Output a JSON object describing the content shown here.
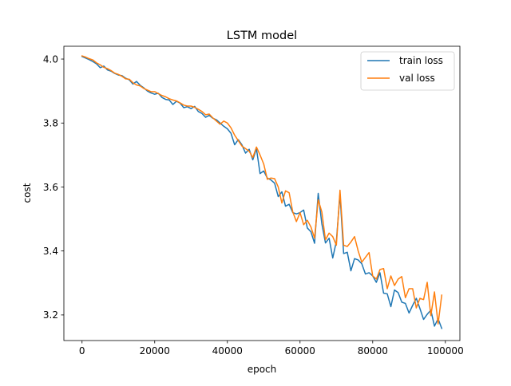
{
  "chart_data": {
    "type": "line",
    "title": "LSTM model",
    "xlabel": "epoch",
    "ylabel": "cost",
    "xlim": [
      -5000,
      104000
    ],
    "ylim": [
      3.12,
      4.04
    ],
    "x_ticks": [
      0,
      20000,
      40000,
      60000,
      80000,
      100000
    ],
    "x_tick_labels": [
      "0",
      "20000",
      "40000",
      "60000",
      "80000",
      "100000"
    ],
    "y_ticks": [
      3.2,
      3.4,
      3.6,
      3.8,
      4.0
    ],
    "y_tick_labels": [
      "3.2",
      "3.4",
      "3.6",
      "3.8",
      "4.0"
    ],
    "grid": false,
    "legend_position": "upper right",
    "x": [
      0,
      1000,
      2000,
      3000,
      4000,
      5000,
      6000,
      7000,
      8000,
      9000,
      10000,
      11000,
      12000,
      13000,
      14000,
      15000,
      16000,
      17000,
      18000,
      19000,
      20000,
      21000,
      22000,
      23000,
      24000,
      25000,
      26000,
      27000,
      28000,
      29000,
      30000,
      31000,
      32000,
      33000,
      34000,
      35000,
      36000,
      37000,
      38000,
      39000,
      40000,
      41000,
      42000,
      43000,
      44000,
      45000,
      46000,
      47000,
      48000,
      49000,
      50000,
      51000,
      52000,
      53000,
      54000,
      55000,
      56000,
      57000,
      58000,
      59000,
      60000,
      61000,
      62000,
      63000,
      64000,
      65000,
      66000,
      67000,
      68000,
      69000,
      70000,
      71000,
      72000,
      73000,
      74000,
      75000,
      76000,
      77000,
      78000,
      79000,
      80000,
      81000,
      82000,
      83000,
      84000,
      85000,
      86000,
      87000,
      88000,
      89000,
      90000,
      91000,
      92000,
      93000,
      94000,
      95000,
      96000,
      97000,
      98000,
      99000
    ],
    "series": [
      {
        "name": "train loss",
        "color": "#1f77b4",
        "values": [
          4.008,
          4.003,
          3.998,
          3.992,
          3.985,
          3.973,
          3.978,
          3.966,
          3.962,
          3.955,
          3.95,
          3.948,
          3.94,
          3.935,
          3.922,
          3.93,
          3.918,
          3.91,
          3.9,
          3.894,
          3.89,
          3.893,
          3.88,
          3.874,
          3.872,
          3.858,
          3.868,
          3.862,
          3.848,
          3.851,
          3.845,
          3.852,
          3.836,
          3.83,
          3.818,
          3.824,
          3.815,
          3.81,
          3.8,
          3.79,
          3.782,
          3.768,
          3.732,
          3.748,
          3.732,
          3.706,
          3.718,
          3.685,
          3.72,
          3.642,
          3.65,
          3.628,
          3.622,
          3.612,
          3.57,
          3.585,
          3.54,
          3.546,
          3.52,
          3.516,
          3.52,
          3.528,
          3.472,
          3.46,
          3.424,
          3.58,
          3.485,
          3.425,
          3.44,
          3.378,
          3.43,
          3.578,
          3.392,
          3.396,
          3.338,
          3.376,
          3.372,
          3.36,
          3.328,
          3.332,
          3.322,
          3.302,
          3.332,
          3.268,
          3.266,
          3.226,
          3.278,
          3.27,
          3.24,
          3.236,
          3.206,
          3.23,
          3.252,
          3.22,
          3.186,
          3.202,
          3.215,
          3.165,
          3.188,
          3.158
        ]
      },
      {
        "name": "val loss",
        "color": "#ff7f0e",
        "values": [
          4.01,
          4.006,
          4.001,
          3.997,
          3.988,
          3.982,
          3.974,
          3.97,
          3.964,
          3.956,
          3.952,
          3.946,
          3.938,
          3.937,
          3.926,
          3.919,
          3.916,
          3.908,
          3.903,
          3.898,
          3.898,
          3.892,
          3.886,
          3.882,
          3.876,
          3.872,
          3.869,
          3.863,
          3.856,
          3.853,
          3.853,
          3.849,
          3.843,
          3.836,
          3.826,
          3.828,
          3.816,
          3.806,
          3.796,
          3.806,
          3.8,
          3.785,
          3.762,
          3.745,
          3.728,
          3.72,
          3.712,
          3.692,
          3.725,
          3.7,
          3.672,
          3.624,
          3.628,
          3.626,
          3.6,
          3.55,
          3.588,
          3.582,
          3.522,
          3.492,
          3.52,
          3.482,
          3.496,
          3.475,
          3.44,
          3.56,
          3.522,
          3.435,
          3.456,
          3.445,
          3.418,
          3.59,
          3.418,
          3.414,
          3.428,
          3.445,
          3.4,
          3.365,
          3.38,
          3.395,
          3.322,
          3.312,
          3.342,
          3.345,
          3.282,
          3.322,
          3.292,
          3.312,
          3.32,
          3.254,
          3.282,
          3.282,
          3.222,
          3.252,
          3.248,
          3.302,
          3.198,
          3.272,
          3.172,
          3.262
        ]
      }
    ]
  }
}
